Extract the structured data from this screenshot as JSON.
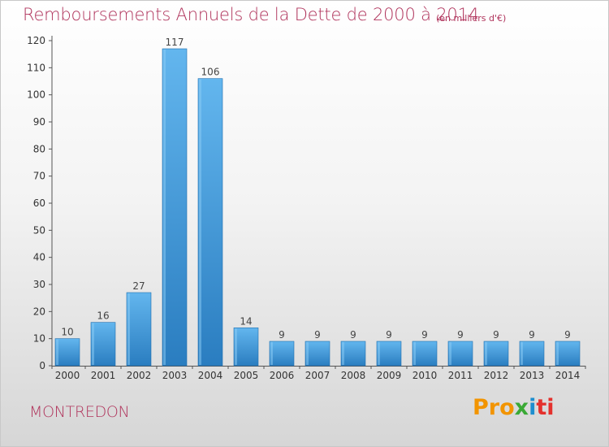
{
  "title": "Remboursements Annuels de la Dette de 2000 à 2014",
  "subtitle": "(en milliers d'€)",
  "commune": "MONTREDON",
  "logo": {
    "p1": "Pro",
    "p2": "x",
    "p3": "i",
    "p4": "ti"
  },
  "colors": {
    "title": "#b0345c",
    "bar_top": "#63b6ee",
    "bar_bottom": "#2a7dc0",
    "bar_edge": "#1f6fb0"
  },
  "chart_data": {
    "type": "bar",
    "categories": [
      "2000",
      "2001",
      "2002",
      "2003",
      "2004",
      "2005",
      "2006",
      "2007",
      "2008",
      "2009",
      "2010",
      "2011",
      "2012",
      "2013",
      "2014"
    ],
    "values": [
      10,
      16,
      27,
      117,
      106,
      14,
      9,
      9,
      9,
      9,
      9,
      9,
      9,
      9,
      9
    ],
    "data_labels": [
      "10",
      "16",
      "27",
      "117",
      "106",
      "14",
      "9",
      "9",
      "9",
      "9",
      "9",
      "9",
      "9",
      "9",
      "9"
    ],
    "title": "Remboursements Annuels de la Dette de 2000 à 2014",
    "xlabel": "",
    "ylabel": "",
    "ylim": [
      0,
      120
    ],
    "yticks": [
      0,
      10,
      20,
      30,
      40,
      50,
      60,
      70,
      80,
      90,
      100,
      110,
      120
    ],
    "grid": false,
    "legend": "none"
  }
}
